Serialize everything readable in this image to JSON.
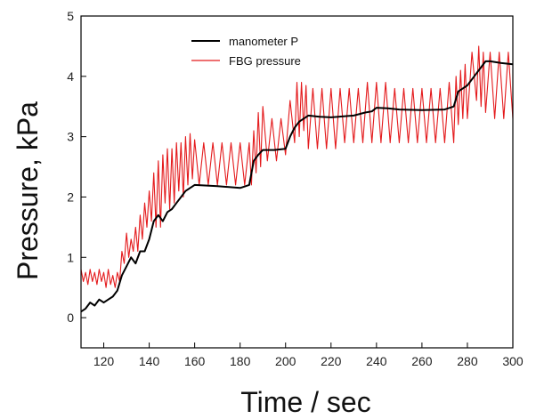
{
  "chart_data": {
    "type": "line",
    "title": "",
    "xlabel": "Time / sec",
    "ylabel": "Pressure, kPa",
    "xlim": [
      110,
      300
    ],
    "ylim": [
      -0.5,
      5
    ],
    "x_ticks": [
      120,
      140,
      160,
      180,
      200,
      220,
      240,
      260,
      280,
      300
    ],
    "y_ticks": [
      0,
      1,
      2,
      3,
      4,
      5
    ],
    "grid": false,
    "legend_position": "top-left",
    "series": [
      {
        "name": "manometer P",
        "color": "#000000",
        "x": [
          110,
          112,
          114,
          116,
          118,
          120,
          122,
          124,
          126,
          128,
          130,
          132,
          134,
          136,
          138,
          140,
          142,
          144,
          146,
          148,
          150,
          152,
          154,
          156,
          158,
          160,
          170,
          180,
          184,
          186,
          188,
          190,
          195,
          200,
          202,
          204,
          206,
          208,
          210,
          215,
          220,
          230,
          235,
          238,
          240,
          245,
          250,
          260,
          270,
          274,
          276,
          278,
          280,
          283,
          286,
          288,
          290,
          295,
          300
        ],
        "y": [
          0.1,
          0.15,
          0.25,
          0.2,
          0.3,
          0.25,
          0.3,
          0.35,
          0.45,
          0.7,
          0.85,
          1.0,
          0.9,
          1.1,
          1.1,
          1.3,
          1.6,
          1.7,
          1.6,
          1.75,
          1.8,
          1.9,
          2.0,
          2.1,
          2.15,
          2.2,
          2.18,
          2.15,
          2.2,
          2.6,
          2.7,
          2.78,
          2.78,
          2.8,
          3.0,
          3.15,
          3.25,
          3.3,
          3.35,
          3.33,
          3.32,
          3.35,
          3.4,
          3.42,
          3.48,
          3.47,
          3.45,
          3.44,
          3.45,
          3.5,
          3.75,
          3.8,
          3.85,
          4.0,
          4.15,
          4.25,
          4.25,
          4.22,
          4.2
        ]
      },
      {
        "name": "FBG pressure",
        "color": "#e41a1c",
        "x": [
          110,
          111,
          112,
          113,
          114,
          115,
          116,
          117,
          118,
          119,
          120,
          121,
          122,
          123,
          124,
          125,
          126,
          127,
          128,
          129,
          130,
          131,
          132,
          133,
          134,
          135,
          136,
          137,
          138,
          139,
          140,
          141,
          142,
          143,
          144,
          145,
          146,
          147,
          148,
          149,
          150,
          151,
          152,
          153,
          154,
          155,
          156,
          157,
          158,
          159,
          160,
          162,
          164,
          166,
          168,
          170,
          172,
          174,
          176,
          178,
          180,
          182,
          184,
          185,
          186,
          187,
          188,
          189,
          190,
          192,
          194,
          196,
          198,
          200,
          202,
          204,
          205,
          206,
          207,
          208,
          209,
          210,
          212,
          214,
          216,
          218,
          220,
          222,
          224,
          226,
          228,
          230,
          232,
          234,
          236,
          238,
          240,
          242,
          244,
          246,
          248,
          250,
          252,
          254,
          256,
          258,
          260,
          262,
          264,
          266,
          268,
          270,
          272,
          274,
          275,
          276,
          277,
          278,
          279,
          280,
          282,
          284,
          285,
          286,
          287,
          288,
          290,
          292,
          294,
          296,
          298,
          300
        ],
        "y": [
          0.8,
          0.6,
          0.75,
          0.55,
          0.8,
          0.6,
          0.75,
          0.55,
          0.8,
          0.6,
          0.75,
          0.5,
          0.8,
          0.55,
          0.7,
          0.5,
          0.75,
          0.6,
          1.1,
          0.9,
          1.4,
          1.0,
          1.3,
          1.1,
          1.5,
          1.1,
          1.7,
          1.3,
          1.9,
          1.5,
          2.1,
          1.6,
          2.4,
          1.5,
          2.6,
          1.5,
          2.7,
          1.9,
          2.8,
          1.8,
          2.8,
          1.9,
          2.9,
          2.1,
          2.9,
          2.0,
          3.0,
          2.2,
          3.05,
          2.3,
          2.95,
          2.2,
          2.9,
          2.2,
          2.9,
          2.2,
          2.9,
          2.2,
          2.9,
          2.2,
          2.9,
          2.2,
          2.9,
          2.2,
          3.1,
          2.4,
          3.4,
          2.5,
          3.5,
          2.6,
          3.3,
          2.6,
          3.3,
          2.7,
          3.6,
          2.9,
          3.9,
          3.0,
          3.9,
          3.1,
          3.85,
          2.8,
          3.8,
          2.8,
          3.8,
          2.8,
          3.8,
          2.8,
          3.8,
          2.9,
          3.8,
          2.9,
          3.8,
          2.9,
          3.9,
          2.9,
          3.9,
          2.9,
          3.9,
          2.9,
          3.8,
          2.9,
          3.8,
          2.9,
          3.8,
          2.9,
          3.8,
          2.9,
          3.8,
          2.9,
          3.8,
          2.9,
          3.9,
          2.9,
          4.0,
          3.2,
          4.1,
          3.3,
          4.2,
          3.3,
          4.4,
          3.6,
          4.5,
          3.5,
          4.4,
          3.4,
          4.4,
          3.3,
          4.4,
          3.3,
          4.4,
          3.3
        ]
      }
    ]
  }
}
